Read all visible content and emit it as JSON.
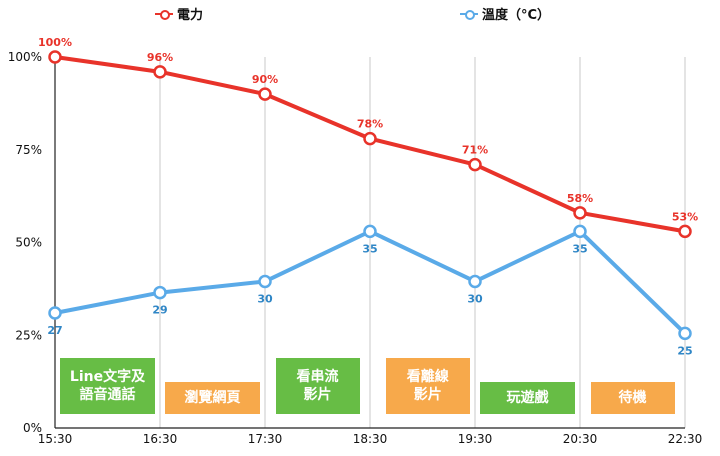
{
  "chart_data": {
    "type": "line",
    "categories": [
      "15:30",
      "16:30",
      "17:30",
      "18:30",
      "19:30",
      "20:30",
      "22:30"
    ],
    "y_ticks": [
      "0%",
      "25%",
      "50%",
      "75%",
      "100%"
    ],
    "ylim": [
      0,
      100
    ],
    "grid": "vertical",
    "legend_position": "top",
    "series": [
      {
        "name": "電力",
        "color": "#e8332a",
        "values": [
          100,
          96,
          90,
          78,
          71,
          58,
          53
        ],
        "labels": [
          "100%",
          "96%",
          "90%",
          "78%",
          "71%",
          "58%",
          "53%"
        ]
      },
      {
        "name": "溫度（°C）",
        "color": "#5aaae8",
        "values": [
          31,
          36.5,
          39.5,
          53,
          39.5,
          53,
          25.5
        ],
        "labels": [
          "27",
          "29",
          "30",
          "35",
          "30",
          "35",
          "25"
        ]
      }
    ],
    "annotations": [
      {
        "text": "Line文字及\n語音通話",
        "color": "#67bd45",
        "from": 0.05,
        "to": 0.95
      },
      {
        "text": "瀏覽網頁",
        "color": "#f7a94b",
        "from": 1.05,
        "to": 1.95
      },
      {
        "text": "看串流\n影片",
        "color": "#67bd45",
        "from": 2.1,
        "to": 2.9
      },
      {
        "text": "看離線\n影片",
        "color": "#f7a94b",
        "from": 3.15,
        "to": 3.95
      },
      {
        "text": "玩遊戲",
        "color": "#67bd45",
        "from": 4.05,
        "to": 4.95
      },
      {
        "text": "待機",
        "color": "#f7a94b",
        "from": 5.1,
        "to": 5.9
      }
    ]
  }
}
